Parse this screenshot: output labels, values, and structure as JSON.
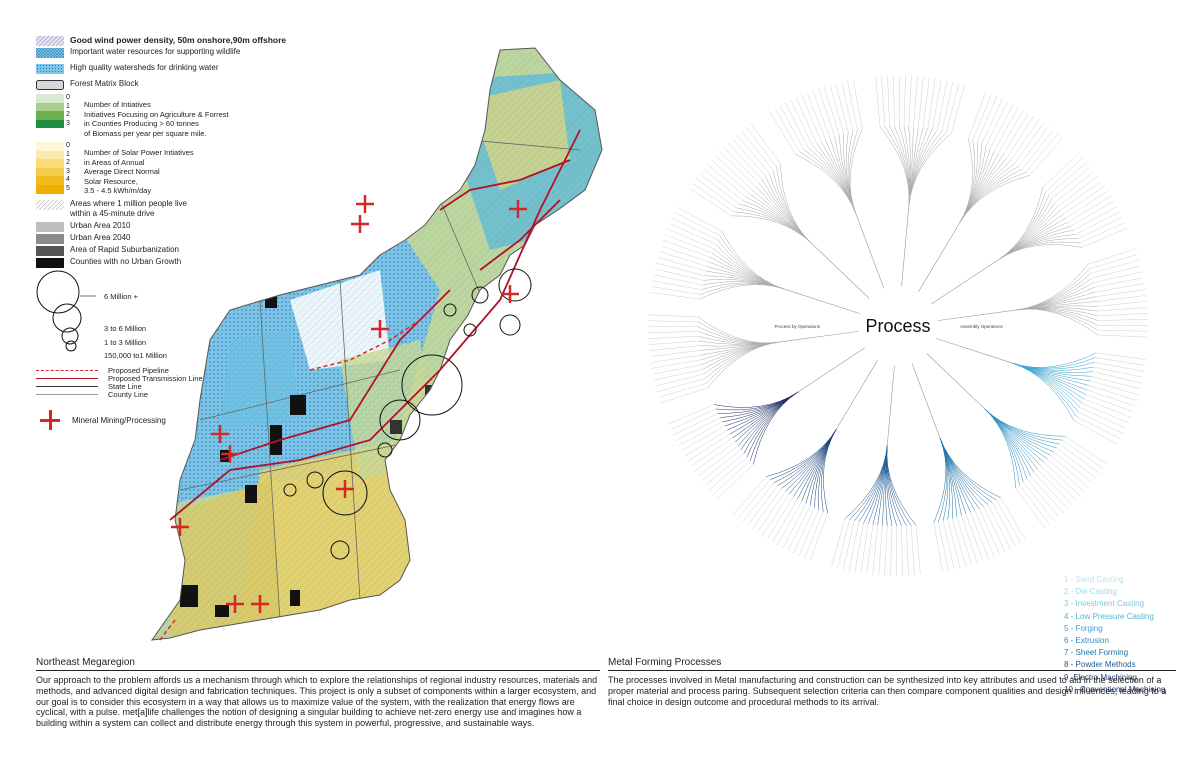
{
  "legend": {
    "wind": "Good wind power density, 50m onshore,90m offshore",
    "water_wildlife": "Important water resources for supporting wildlife",
    "watersheds": "High quality watersheds for drinking water",
    "forest_block": "Forest Matrix Block",
    "initiatives": {
      "numbers": [
        "0",
        "1",
        "2",
        "3"
      ],
      "colors": [
        "#d9ead3",
        "#a8d08d",
        "#6ab04c",
        "#1e8e3e"
      ],
      "lines": [
        "Number of Intiatives",
        "Initiatives Focusing on Agriculture & Forrest",
        "in Counties Producing > 60 tonnes",
        "of Biomass per year per square mile."
      ]
    },
    "solar": {
      "numbers": [
        "0",
        "1",
        "2",
        "3",
        "4",
        "5"
      ],
      "colors": [
        "#fdf6d8",
        "#fbe9a9",
        "#f8dc7a",
        "#f5cd4b",
        "#f2bd1c",
        "#f0b000"
      ],
      "lines": [
        "Number of Solar Power Intiatives",
        "in Areas of Annual",
        "Average Direct Normal",
        "Solar Resource,",
        "3.5 - 4.5 kWh/m/day"
      ]
    },
    "people_line1": "Areas where 1 million people live",
    "people_line2": "within a 45-minute drive",
    "urban2010": "Urban Area 2010",
    "urban2040": "Urban Area 2040",
    "suburban": "Area of Rapid Suburbanization",
    "no_growth": "Counties with no Urban Growth",
    "circles": [
      "6 Million +",
      "3 to 6 Million",
      "1 to 3 Million",
      "150,000 to1 Million"
    ],
    "pipeline": "Proposed Pipeline",
    "transmission": "Proposed Transmission Line",
    "state_line": "State Line",
    "county_line": "County Line",
    "mining": "Mineral Mining/Processing"
  },
  "tree": {
    "center": "Process",
    "branches": [
      "Process by Operations",
      "Assembly Operations"
    ],
    "legend": [
      {
        "label": "1 - Sand Casting",
        "color": "#bfe3ef"
      },
      {
        "label": "2 - Die Casting",
        "color": "#9fd8ea"
      },
      {
        "label": "3 - Investment Casting",
        "color": "#7ccbe3"
      },
      {
        "label": "4 - Low Pressure Casting",
        "color": "#52b6d8"
      },
      {
        "label": "5 - Forging",
        "color": "#3aa2cf"
      },
      {
        "label": "6 - Extrusion",
        "color": "#2b8cbf"
      },
      {
        "label": "7 - Sheet Forming",
        "color": "#1f72a8"
      },
      {
        "label": "8 - Powder Methods",
        "color": "#1d5a93"
      },
      {
        "label": "9 -Electro Machining",
        "color": "#1b447c"
      },
      {
        "label": "10 - Conventional Machining",
        "color": "#1a2f63"
      }
    ]
  },
  "captions": {
    "left_title": "Northeast Megaregion",
    "left_body": "Our approach to the problem affords us a mechanism through which to explore the relationships of regional industry resources, materials and methods, and advanced digital design and fabrication techniques.  This project is only a subset of components within a larger ecosystem, and our goal is to consider this ecosystem in a way that allows us to maximize value of the system, with the realization that energy flows are cyclical, with a pulse.  met[a]life challenges the notion of designing a singular building to achieve net-zero energy use and imagines how a building within a system can collect and distribute energy through this system in powerful, progressive, and sustainable ways.",
    "right_title": "Metal Forming Processes",
    "right_body": "The processes involved in Metal manufacturing and construction can be synthesized into key attributes and used to aid in the selection of a proper material and process paring. Subsequent selection criteria can then compare component qualities and design influences, leading to a final choice in design outcome and procedural methods to its arrival."
  }
}
